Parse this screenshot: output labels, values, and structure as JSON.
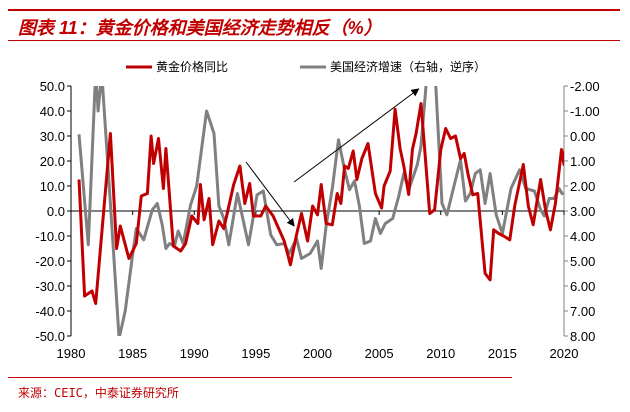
{
  "title": "图表 11：黄金价格和美国经济走势相反（%）",
  "source": "来源：CEIC，中泰证券研究所",
  "colors": {
    "gold": "#c00000",
    "gdp": "#808080",
    "accent": "#c00000"
  },
  "chart_data": {
    "type": "line",
    "title": "",
    "xlim": [
      1980,
      2020
    ],
    "x_ticks": [
      "1980",
      "1985",
      "1990",
      "1995",
      "2000",
      "2005",
      "2010",
      "2015",
      "2020"
    ],
    "left_axis": {
      "range": [
        -50,
        50
      ],
      "ticks": [
        "50.0",
        "40.0",
        "30.0",
        "20.0",
        "10.0",
        "0.0",
        "-10.0",
        "-20.0",
        "-30.0",
        "-40.0",
        "-50.0"
      ]
    },
    "right_axis": {
      "range": [
        -2,
        8
      ],
      "reversed": true,
      "ticks": [
        "-2.00",
        "-1.00",
        "0.00",
        "1.00",
        "2.00",
        "3.00",
        "4.00",
        "5.00",
        "6.00",
        "7.00",
        "8.00"
      ]
    },
    "legend_position": "top",
    "series": [
      {
        "name": "黄金价格同比",
        "axis": "left",
        "color": "#c00000",
        "x": [
          1980.65,
          1981.1,
          1981.7,
          1982,
          1983.2,
          1983.7,
          1984,
          1984.7,
          1985.3,
          1985.7,
          1986.2,
          1986.5,
          1986.7,
          1987.1,
          1987.5,
          1987.7,
          1988.3,
          1988.9,
          1989.3,
          1989.8,
          1990.3,
          1990.5,
          1990.8,
          1991.2,
          1991.5,
          1992,
          1992.4,
          1993.2,
          1993.7,
          1994.1,
          1994.5,
          1994.8,
          1995.4,
          1995.8,
          1996.4,
          1997.3,
          1997.8,
          1998.3,
          1998.7,
          1999.2,
          1999.6,
          2000,
          2000.3,
          2000.7,
          2001.2,
          2001.6,
          2001.9,
          2002.2,
          2002.5,
          2002.9,
          2003.2,
          2003.6,
          2004.1,
          2004.7,
          2005.2,
          2005.4,
          2005.9,
          2006.3,
          2006.7,
          2007,
          2007.4,
          2007.7,
          2008,
          2008.4,
          2008.7,
          2009.1,
          2009.5,
          2010,
          2010.4,
          2010.8,
          2011.2,
          2011.6,
          2011.9,
          2012.2,
          2012.6,
          2013,
          2013.6,
          2014,
          2014.3,
          2014.7,
          2015.1,
          2015.6,
          2016,
          2016.7,
          2017.1,
          2017.5,
          2018.1,
          2018.5,
          2018.9,
          2019.3,
          2019.8,
          2020,
          2020.1
        ],
        "y": [
          12.6,
          -34,
          -32,
          -37,
          31,
          -15,
          -6,
          -19,
          -13,
          6,
          7,
          30,
          19,
          29,
          9,
          25,
          -14,
          -16,
          -13,
          -2,
          -5,
          10.6,
          -3.5,
          5,
          -13.5,
          -4,
          -7,
          10.6,
          18,
          3,
          11,
          -2,
          -2,
          2,
          -2,
          -12,
          -21.5,
          -9.5,
          -1,
          -12,
          2,
          -1.5,
          10.6,
          -5,
          -5.5,
          7,
          3,
          18,
          17,
          24,
          12.6,
          21,
          27,
          7,
          1.2,
          10,
          16,
          40.7,
          25,
          18,
          6.6,
          24.6,
          31,
          43,
          24.6,
          -1,
          0.5,
          24.6,
          33,
          29,
          30,
          21,
          23,
          15,
          6.5,
          7,
          -25,
          -27.5,
          -7.5,
          -9,
          -10,
          -11.5,
          2,
          18.6,
          2,
          -5.5,
          12.6,
          0.5,
          -7.5,
          3,
          24.6,
          18.6,
          24.6
        ]
      },
      {
        "name": "美国经济增速（右轴，逆序）",
        "axis": "right",
        "color": "#808080",
        "x": [
          1980.65,
          1981.4,
          1982,
          1982.2,
          1982.5,
          1983.2,
          1983.9,
          1984.4,
          1985,
          1985.3,
          1985.9,
          1986.6,
          1987,
          1987.4,
          1987.7,
          1988,
          1988.4,
          1988.7,
          1989.1,
          1989.7,
          1990.2,
          1991,
          1991.6,
          1992,
          1992.4,
          1992.8,
          1993.5,
          1994.4,
          1995.1,
          1995.6,
          1996.2,
          1996.7,
          1997.3,
          1997.7,
          1998.3,
          1998.7,
          1999.4,
          2000,
          2000.3,
          2000.7,
          2001.2,
          2001.7,
          2002.2,
          2002.6,
          2003,
          2003.4,
          2003.8,
          2004.3,
          2004.7,
          2005.1,
          2005.5,
          2006.1,
          2006.6,
          2007,
          2007.4,
          2008.1,
          2008.4,
          2008.8,
          2009.2,
          2009.6,
          2010.1,
          2010.5,
          2011.1,
          2011.6,
          2012,
          2012.4,
          2012.8,
          2013.2,
          2013.6,
          2014,
          2014.5,
          2015,
          2015.7,
          2016.4,
          2016.9,
          2017.6,
          2018.1,
          2018.4,
          2018.8,
          2019.2,
          2019.6,
          2019.9
        ],
        "y": [
          -0.07,
          4.35,
          -2.6,
          -1.0,
          -2.5,
          2.7,
          8.1,
          7,
          4.75,
          3.7,
          4.15,
          2.95,
          2.7,
          3.55,
          4.5,
          4.3,
          4.4,
          3.8,
          4.3,
          2.75,
          2.0,
          -1.0,
          -0.1,
          2.8,
          3.3,
          4.35,
          2.3,
          4.35,
          2.35,
          2.2,
          3.95,
          4.35,
          4.3,
          4.7,
          4.1,
          4.9,
          4.7,
          4.2,
          5.3,
          3.6,
          2.1,
          0.15,
          1.35,
          2.15,
          1.8,
          2.8,
          4.3,
          4.2,
          3.3,
          3.9,
          3.5,
          3.3,
          2.4,
          1.5,
          2.15,
          1.15,
          0.4,
          -2,
          -4,
          -2,
          2.7,
          3.15,
          1.95,
          0.95,
          2.6,
          2.3,
          1.5,
          1.35,
          2.7,
          1.5,
          3.15,
          3.9,
          2.1,
          1.35,
          2.1,
          2.2,
          2.95,
          3.2,
          2.5,
          2.5,
          2.1,
          2.35
        ]
      }
    ],
    "annotations": [
      {
        "type": "arrow",
        "from": [
          1994.2,
          19.6
        ],
        "to": [
          1998.1,
          -6
        ]
      },
      {
        "type": "arrow",
        "from": [
          1998.1,
          11.6
        ],
        "to": [
          2008.2,
          48.8
        ]
      }
    ]
  }
}
